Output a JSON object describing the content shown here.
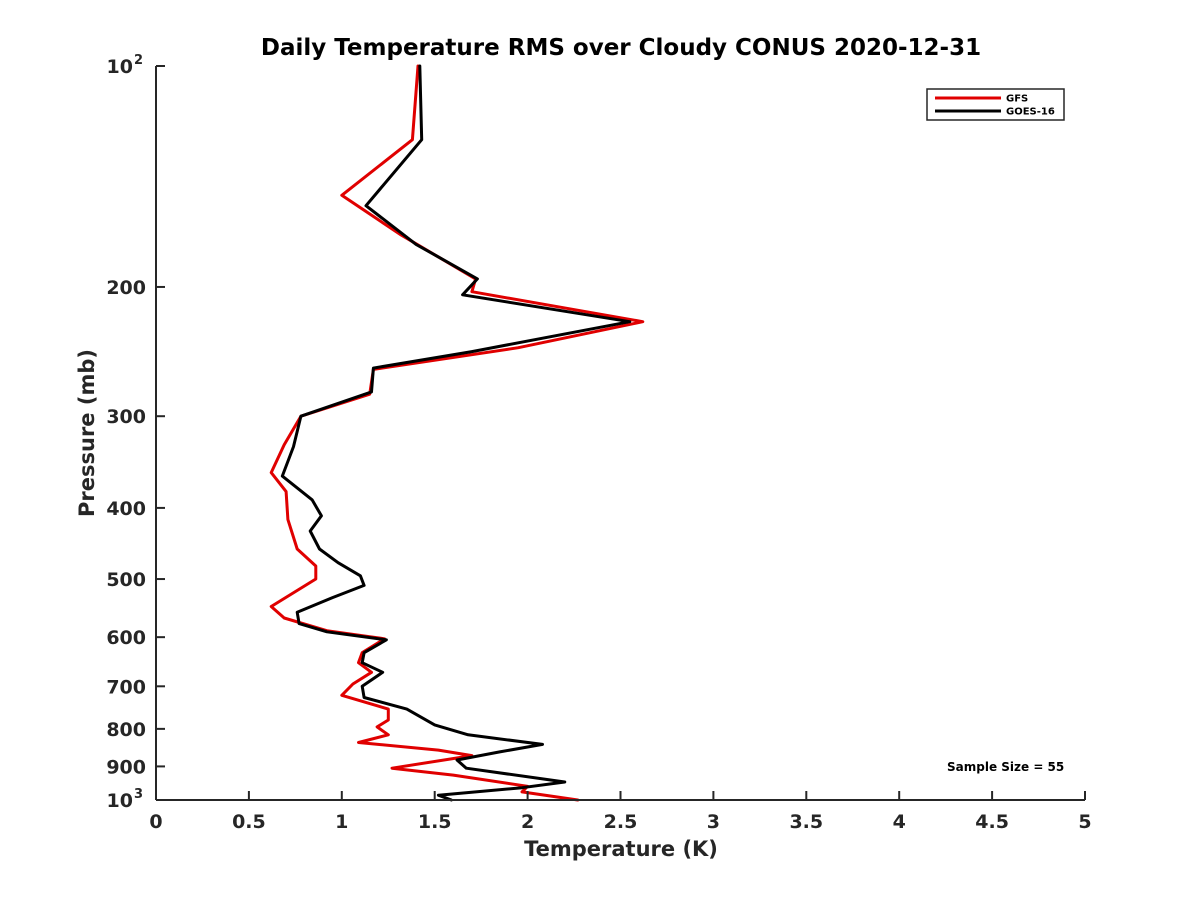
{
  "chart_data": {
    "type": "line",
    "title": "Daily Temperature RMS over Cloudy CONUS 2020-12-31",
    "xlabel": "Temperature (K)",
    "ylabel": "Pressure (mb)",
    "xlim": [
      0,
      5
    ],
    "ylim": [
      100,
      1000
    ],
    "y_scale": "log",
    "y_reversed": true,
    "grid": false,
    "legend_position": "top-right",
    "x_ticks": [
      "0",
      "0.5",
      "1",
      "1.5",
      "2",
      "2.5",
      "3",
      "3.5",
      "4",
      "4.5",
      "5"
    ],
    "y_ticks": [
      {
        "value": 100,
        "label": "10",
        "exp": "2"
      },
      {
        "value": 200,
        "label": "200",
        "exp": ""
      },
      {
        "value": 300,
        "label": "300",
        "exp": ""
      },
      {
        "value": 400,
        "label": "400",
        "exp": ""
      },
      {
        "value": 500,
        "label": "500",
        "exp": ""
      },
      {
        "value": 600,
        "label": "600",
        "exp": ""
      },
      {
        "value": 700,
        "label": "700",
        "exp": ""
      },
      {
        "value": 800,
        "label": "800",
        "exp": ""
      },
      {
        "value": 900,
        "label": "900",
        "exp": ""
      },
      {
        "value": 1000,
        "label": "10",
        "exp": "3"
      }
    ],
    "series": [
      {
        "name": "GFS",
        "color": "#e00000",
        "points": [
          [
            1.41,
            100
          ],
          [
            1.38,
            126
          ],
          [
            1.0,
            150
          ],
          [
            1.32,
            170
          ],
          [
            1.72,
            195
          ],
          [
            1.7,
            203
          ],
          [
            2.62,
            223
          ],
          [
            1.95,
            242
          ],
          [
            1.17,
            259
          ],
          [
            1.15,
            280
          ],
          [
            0.78,
            300
          ],
          [
            0.69,
            328
          ],
          [
            0.62,
            358
          ],
          [
            0.7,
            380
          ],
          [
            0.71,
            415
          ],
          [
            0.76,
            455
          ],
          [
            0.86,
            480
          ],
          [
            0.86,
            500
          ],
          [
            0.62,
            545
          ],
          [
            0.69,
            565
          ],
          [
            0.92,
            588
          ],
          [
            1.23,
            603
          ],
          [
            1.11,
            630
          ],
          [
            1.09,
            650
          ],
          [
            1.16,
            670
          ],
          [
            1.06,
            695
          ],
          [
            1.0,
            720
          ],
          [
            1.25,
            752
          ],
          [
            1.25,
            778
          ],
          [
            1.19,
            795
          ],
          [
            1.25,
            815
          ],
          [
            1.09,
            835
          ],
          [
            1.52,
            855
          ],
          [
            1.7,
            870
          ],
          [
            1.27,
            905
          ],
          [
            1.6,
            925
          ],
          [
            2.0,
            958
          ],
          [
            1.97,
            975
          ],
          [
            2.27,
            1000
          ]
        ]
      },
      {
        "name": "GOES-16",
        "color": "#000000",
        "points": [
          [
            1.42,
            100
          ],
          [
            1.43,
            126
          ],
          [
            1.13,
            155
          ],
          [
            1.4,
            175
          ],
          [
            1.73,
            195
          ],
          [
            1.65,
            205
          ],
          [
            2.55,
            223
          ],
          [
            1.7,
            245
          ],
          [
            1.17,
            258
          ],
          [
            1.16,
            278
          ],
          [
            0.78,
            300
          ],
          [
            0.74,
            330
          ],
          [
            0.68,
            362
          ],
          [
            0.84,
            390
          ],
          [
            0.89,
            410
          ],
          [
            0.83,
            430
          ],
          [
            0.88,
            455
          ],
          [
            0.98,
            475
          ],
          [
            1.1,
            495
          ],
          [
            1.12,
            510
          ],
          [
            0.95,
            530
          ],
          [
            0.76,
            555
          ],
          [
            0.77,
            575
          ],
          [
            0.92,
            590
          ],
          [
            1.24,
            605
          ],
          [
            1.12,
            630
          ],
          [
            1.11,
            650
          ],
          [
            1.22,
            670
          ],
          [
            1.11,
            700
          ],
          [
            1.12,
            725
          ],
          [
            1.35,
            752
          ],
          [
            1.5,
            790
          ],
          [
            1.68,
            815
          ],
          [
            2.08,
            840
          ],
          [
            1.85,
            860
          ],
          [
            1.62,
            882
          ],
          [
            1.67,
            905
          ],
          [
            2.2,
            945
          ],
          [
            1.97,
            962
          ],
          [
            1.52,
            985
          ],
          [
            1.59,
            1000
          ]
        ]
      }
    ],
    "annotation": "Sample Size = 55"
  }
}
